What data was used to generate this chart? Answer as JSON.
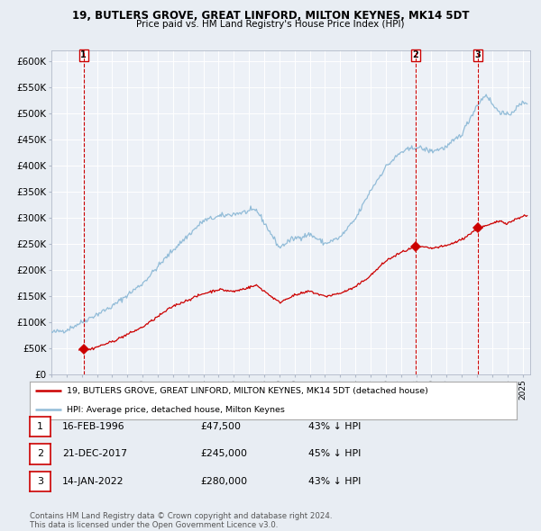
{
  "title": "19, BUTLERS GROVE, GREAT LINFORD, MILTON KEYNES, MK14 5DT",
  "subtitle": "Price paid vs. HM Land Registry's House Price Index (HPI)",
  "bg_color": "#e8edf3",
  "plot_bg_color": "#edf1f7",
  "grid_color": "#ffffff",
  "hpi_color": "#92bcd8",
  "price_color": "#cc0000",
  "sale_marker_color": "#cc0000",
  "vline_color": "#cc0000",
  "ylim": [
    0,
    620000
  ],
  "yticks": [
    0,
    50000,
    100000,
    150000,
    200000,
    250000,
    300000,
    350000,
    400000,
    450000,
    500000,
    550000,
    600000
  ],
  "sales": [
    {
      "date_num": 1996.12,
      "price": 47500,
      "label": "1"
    },
    {
      "date_num": 2017.97,
      "price": 245000,
      "label": "2"
    },
    {
      "date_num": 2022.04,
      "price": 280000,
      "label": "3"
    }
  ],
  "legend_line1": "19, BUTLERS GROVE, GREAT LINFORD, MILTON KEYNES, MK14 5DT (detached house)",
  "legend_line2": "HPI: Average price, detached house, Milton Keynes",
  "table_data": [
    [
      "1",
      "16-FEB-1996",
      "£47,500",
      "43% ↓ HPI"
    ],
    [
      "2",
      "21-DEC-2017",
      "£245,000",
      "45% ↓ HPI"
    ],
    [
      "3",
      "14-JAN-2022",
      "£280,000",
      "43% ↓ HPI"
    ]
  ],
  "footer": "Contains HM Land Registry data © Crown copyright and database right 2024.\nThis data is licensed under the Open Government Licence v3.0.",
  "xmin": 1994.0,
  "xmax": 2025.5
}
